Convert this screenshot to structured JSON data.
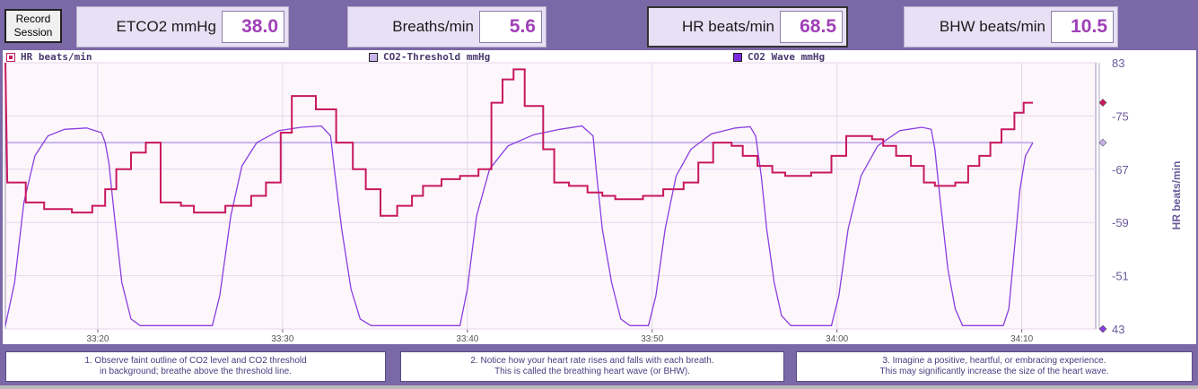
{
  "toolbar": {
    "record_label": "Record\nSession",
    "metrics": [
      {
        "label": "ETCO2 mmHg",
        "value": "38.0"
      },
      {
        "label": "Breaths/min",
        "value": "5.6"
      },
      {
        "label": "HR beats/min",
        "value": "68.5"
      },
      {
        "label": "BHW beats/min",
        "value": "10.5"
      }
    ]
  },
  "legend": [
    {
      "label": "HR beats/min",
      "color": "#c8185e"
    },
    {
      "label": "CO2-Threshold mmHg",
      "color": "#c9b3ec"
    },
    {
      "label": "CO2 Wave mmHg",
      "color": "#7a2be0"
    }
  ],
  "colors": {
    "hr": "#c8185e",
    "threshold": "#c9b3ec",
    "co2": "#8a3ee0",
    "plot_bg": "#fdf7fc",
    "grid": "#e7d6ea",
    "axis_text": "#6a5a9a"
  },
  "chart_data": {
    "type": "line",
    "xlabel": "",
    "ylabel": "HR beats/min",
    "ylim": [
      43,
      83
    ],
    "yticks": [
      "83",
      "-75",
      "-67",
      "-59",
      "-51",
      "43"
    ],
    "xticks": [
      "33:20",
      "33:30",
      "33:40",
      "33:50",
      "34:00",
      "34:10"
    ],
    "xrange_seconds": [
      1995,
      2054
    ],
    "series": [
      {
        "name": "HR beats/min",
        "points": [
          [
            1995,
            83
          ],
          [
            1995.1,
            65
          ],
          [
            1996.1,
            65
          ],
          [
            1996.1,
            62
          ],
          [
            1997.1,
            62
          ],
          [
            1997.1,
            61
          ],
          [
            1998.6,
            61
          ],
          [
            1998.6,
            60.5
          ],
          [
            1999.7,
            60.5
          ],
          [
            1999.7,
            61.5
          ],
          [
            2000.4,
            61.5
          ],
          [
            2000.4,
            64
          ],
          [
            2001,
            64
          ],
          [
            2001,
            67
          ],
          [
            2001.8,
            67
          ],
          [
            2001.8,
            69.5
          ],
          [
            2002.6,
            69.5
          ],
          [
            2002.6,
            71
          ],
          [
            2003.4,
            71
          ],
          [
            2003.4,
            62
          ],
          [
            2004.5,
            62
          ],
          [
            2004.5,
            61.5
          ],
          [
            2005.2,
            61.5
          ],
          [
            2005.2,
            60.5
          ],
          [
            2006.9,
            60.5
          ],
          [
            2006.9,
            61.5
          ],
          [
            2008.3,
            61.5
          ],
          [
            2008.3,
            63
          ],
          [
            2009.1,
            63
          ],
          [
            2009.1,
            65
          ],
          [
            2009.9,
            65
          ],
          [
            2009.9,
            72.5
          ],
          [
            2010.5,
            72.5
          ],
          [
            2010.5,
            78
          ],
          [
            2011.8,
            78
          ],
          [
            2011.8,
            76
          ],
          [
            2012.9,
            76
          ],
          [
            2012.9,
            71
          ],
          [
            2013.8,
            71
          ],
          [
            2013.8,
            67
          ],
          [
            2014.5,
            67
          ],
          [
            2014.5,
            64
          ],
          [
            2015.3,
            64
          ],
          [
            2015.3,
            60
          ],
          [
            2016.2,
            60
          ],
          [
            2016.2,
            61.5
          ],
          [
            2017,
            61.5
          ],
          [
            2017,
            63
          ],
          [
            2017.6,
            63
          ],
          [
            2017.6,
            64.5
          ],
          [
            2018.6,
            64.5
          ],
          [
            2018.6,
            65.5
          ],
          [
            2019.6,
            65.5
          ],
          [
            2019.6,
            66
          ],
          [
            2020.6,
            66
          ],
          [
            2020.6,
            67
          ],
          [
            2021.3,
            67
          ],
          [
            2021.3,
            77
          ],
          [
            2021.9,
            77
          ],
          [
            2021.9,
            80.5
          ],
          [
            2022.5,
            80.5
          ],
          [
            2022.5,
            82
          ],
          [
            2023.1,
            82
          ],
          [
            2023.1,
            76.5
          ],
          [
            2024.1,
            76.5
          ],
          [
            2024.1,
            70
          ],
          [
            2024.7,
            70
          ],
          [
            2024.7,
            65
          ],
          [
            2025.5,
            65
          ],
          [
            2025.5,
            64.5
          ],
          [
            2026.5,
            64.5
          ],
          [
            2026.5,
            63.5
          ],
          [
            2027.3,
            63.5
          ],
          [
            2027.3,
            63
          ],
          [
            2028,
            63
          ],
          [
            2028,
            62.5
          ],
          [
            2029.5,
            62.5
          ],
          [
            2029.5,
            63
          ],
          [
            2030.6,
            63
          ],
          [
            2030.6,
            64
          ],
          [
            2031.7,
            64
          ],
          [
            2031.7,
            65
          ],
          [
            2032.5,
            65
          ],
          [
            2032.5,
            68
          ],
          [
            2033.3,
            68
          ],
          [
            2033.3,
            71
          ],
          [
            2034.3,
            71
          ],
          [
            2034.3,
            70.5
          ],
          [
            2034.9,
            70.5
          ],
          [
            2034.9,
            69
          ],
          [
            2035.7,
            69
          ],
          [
            2035.7,
            67.5
          ],
          [
            2036.5,
            67.5
          ],
          [
            2036.5,
            66.5
          ],
          [
            2037.2,
            66.5
          ],
          [
            2037.2,
            66
          ],
          [
            2038.6,
            66
          ],
          [
            2038.6,
            66.5
          ],
          [
            2039.7,
            66.5
          ],
          [
            2039.7,
            69
          ],
          [
            2040.5,
            69
          ],
          [
            2040.5,
            72
          ],
          [
            2041.9,
            72
          ],
          [
            2041.9,
            71.5
          ],
          [
            2042.5,
            71.5
          ],
          [
            2042.5,
            70.5
          ],
          [
            2043.2,
            70.5
          ],
          [
            2043.2,
            69
          ],
          [
            2044,
            69
          ],
          [
            2044,
            67.5
          ],
          [
            2044.7,
            67.5
          ],
          [
            2044.7,
            65
          ],
          [
            2045.3,
            65
          ],
          [
            2045.3,
            64.5
          ],
          [
            2046.4,
            64.5
          ],
          [
            2046.4,
            65
          ],
          [
            2047.1,
            65
          ],
          [
            2047.1,
            67.5
          ],
          [
            2047.7,
            67.5
          ],
          [
            2047.7,
            69
          ],
          [
            2048.3,
            69
          ],
          [
            2048.3,
            71
          ],
          [
            2048.9,
            71
          ],
          [
            2048.9,
            73
          ],
          [
            2049.6,
            73
          ],
          [
            2049.6,
            75.5
          ],
          [
            2050.1,
            75.5
          ],
          [
            2050.1,
            77
          ],
          [
            2050.6,
            77
          ]
        ]
      },
      {
        "name": "CO2-Threshold mmHg",
        "points": [
          [
            1995,
            71
          ],
          [
            2050.6,
            71
          ]
        ]
      },
      {
        "name": "CO2 Wave mmHg",
        "points": [
          [
            1995,
            43.5
          ],
          [
            1995.5,
            50
          ],
          [
            1996,
            62
          ],
          [
            1996.6,
            69
          ],
          [
            1997.3,
            72
          ],
          [
            1998.2,
            73
          ],
          [
            1999.4,
            73.2
          ],
          [
            2000.2,
            72.5
          ],
          [
            2000.4,
            71
          ],
          [
            2000.6,
            68
          ],
          [
            2000.9,
            60
          ],
          [
            2001.3,
            50
          ],
          [
            2001.8,
            44.5
          ],
          [
            2002.3,
            43.5
          ],
          [
            2006.2,
            43.5
          ],
          [
            2006.6,
            48
          ],
          [
            2007.2,
            60
          ],
          [
            2007.8,
            67.5
          ],
          [
            2008.6,
            71
          ],
          [
            2009.8,
            72.8
          ],
          [
            2011,
            73.3
          ],
          [
            2012.1,
            73.5
          ],
          [
            2012.6,
            72
          ],
          [
            2012.8,
            67
          ],
          [
            2013.2,
            58
          ],
          [
            2013.7,
            49
          ],
          [
            2014.2,
            44.5
          ],
          [
            2014.8,
            43.5
          ],
          [
            2019.6,
            43.5
          ],
          [
            2020,
            49
          ],
          [
            2020.5,
            60
          ],
          [
            2021.2,
            67
          ],
          [
            2022.2,
            70.5
          ],
          [
            2023.6,
            72.2
          ],
          [
            2025,
            73
          ],
          [
            2026.2,
            73.5
          ],
          [
            2026.8,
            72
          ],
          [
            2027,
            66
          ],
          [
            2027.3,
            58
          ],
          [
            2027.8,
            50
          ],
          [
            2028.3,
            44.5
          ],
          [
            2028.8,
            43.5
          ],
          [
            2029.8,
            43.5
          ],
          [
            2030.2,
            48
          ],
          [
            2030.7,
            58
          ],
          [
            2031.3,
            66
          ],
          [
            2032.1,
            70
          ],
          [
            2033.2,
            72.3
          ],
          [
            2034.5,
            73.2
          ],
          [
            2035.3,
            73.4
          ],
          [
            2035.6,
            72
          ],
          [
            2035.9,
            66
          ],
          [
            2036.2,
            58
          ],
          [
            2036.6,
            50
          ],
          [
            2037,
            45
          ],
          [
            2037.5,
            43.5
          ],
          [
            2039.7,
            43.5
          ],
          [
            2040.1,
            48
          ],
          [
            2040.6,
            58
          ],
          [
            2041.3,
            66
          ],
          [
            2042.2,
            70.5
          ],
          [
            2043.4,
            72.8
          ],
          [
            2044.6,
            73.3
          ],
          [
            2045.1,
            73
          ],
          [
            2045.3,
            70
          ],
          [
            2045.6,
            62
          ],
          [
            2046,
            52
          ],
          [
            2046.4,
            46
          ],
          [
            2046.8,
            43.5
          ],
          [
            2049,
            43.5
          ],
          [
            2049.3,
            46
          ],
          [
            2049.6,
            55
          ],
          [
            2049.9,
            64
          ],
          [
            2050.2,
            69
          ],
          [
            2050.6,
            71
          ]
        ]
      }
    ]
  },
  "notes": [
    "1. Observe faint outline of CO2 level and CO2 threshold\nin background; breathe above the threshold line.",
    "2. Notice how your heart rate rises and falls with each breath.\nThis is called the breathing heart wave (or BHW).",
    "3. Imagine a positive, heartful, or embracing experience.\nThis may significantly increase the size of the heart wave."
  ]
}
